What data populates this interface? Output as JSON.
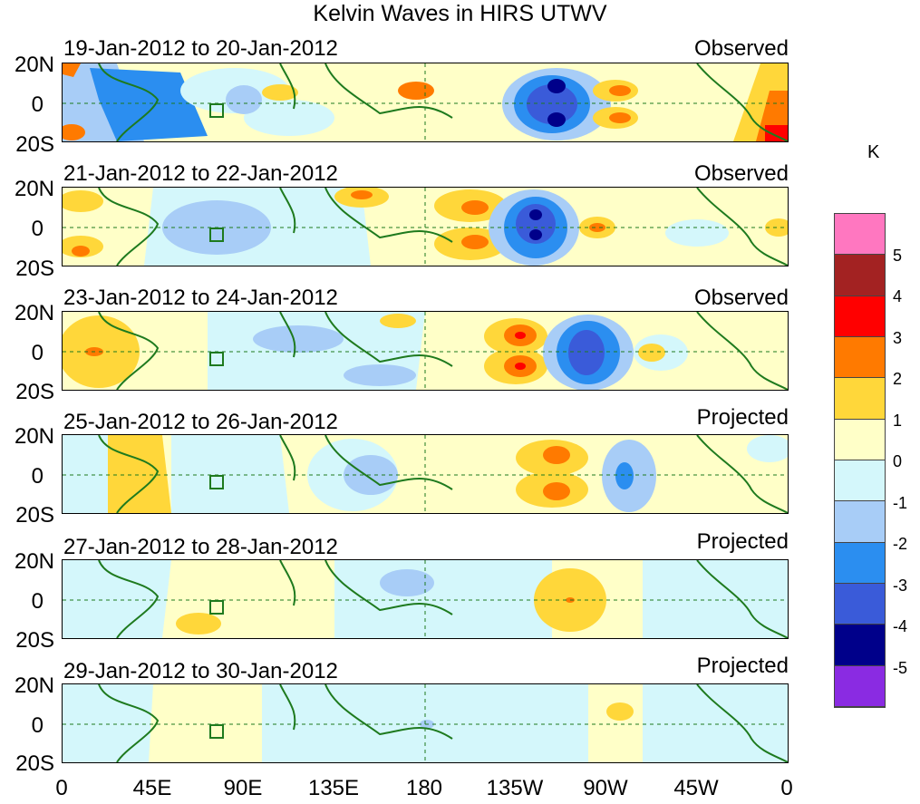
{
  "title": "Kelvin Waves in HIRS UTWV",
  "panels": [
    {
      "date_range": "19-Jan-2012 to 20-Jan-2012",
      "status": "Observed"
    },
    {
      "date_range": "21-Jan-2012 to 22-Jan-2012",
      "status": "Observed"
    },
    {
      "date_range": "23-Jan-2012 to 24-Jan-2012",
      "status": "Observed"
    },
    {
      "date_range": "25-Jan-2012 to 26-Jan-2012",
      "status": "Projected"
    },
    {
      "date_range": "27-Jan-2012 to 28-Jan-2012",
      "status": "Projected"
    },
    {
      "date_range": "29-Jan-2012 to 30-Jan-2012",
      "status": "Projected"
    }
  ],
  "lat_labels": [
    "20N",
    "0",
    "20S"
  ],
  "lon_labels": [
    "0",
    "45E",
    "90E",
    "135E",
    "180",
    "135W",
    "90W",
    "45W",
    "0"
  ],
  "colorbar": {
    "unit": "K",
    "labels": [
      "5",
      "4",
      "3",
      "2",
      "1",
      "0",
      "-1",
      "-2",
      "-3",
      "-4",
      "-5"
    ],
    "colors": [
      "#ff77c0",
      "#a32222",
      "#ff0000",
      "#ff7a00",
      "#ffd73a",
      "#ffffc8",
      "#d4f7fb",
      "#a8cdf7",
      "#2b8ef0",
      "#3a5bd9",
      "#00008a",
      "#8a2be2"
    ]
  },
  "coastline_color": "#1e7a1e"
}
